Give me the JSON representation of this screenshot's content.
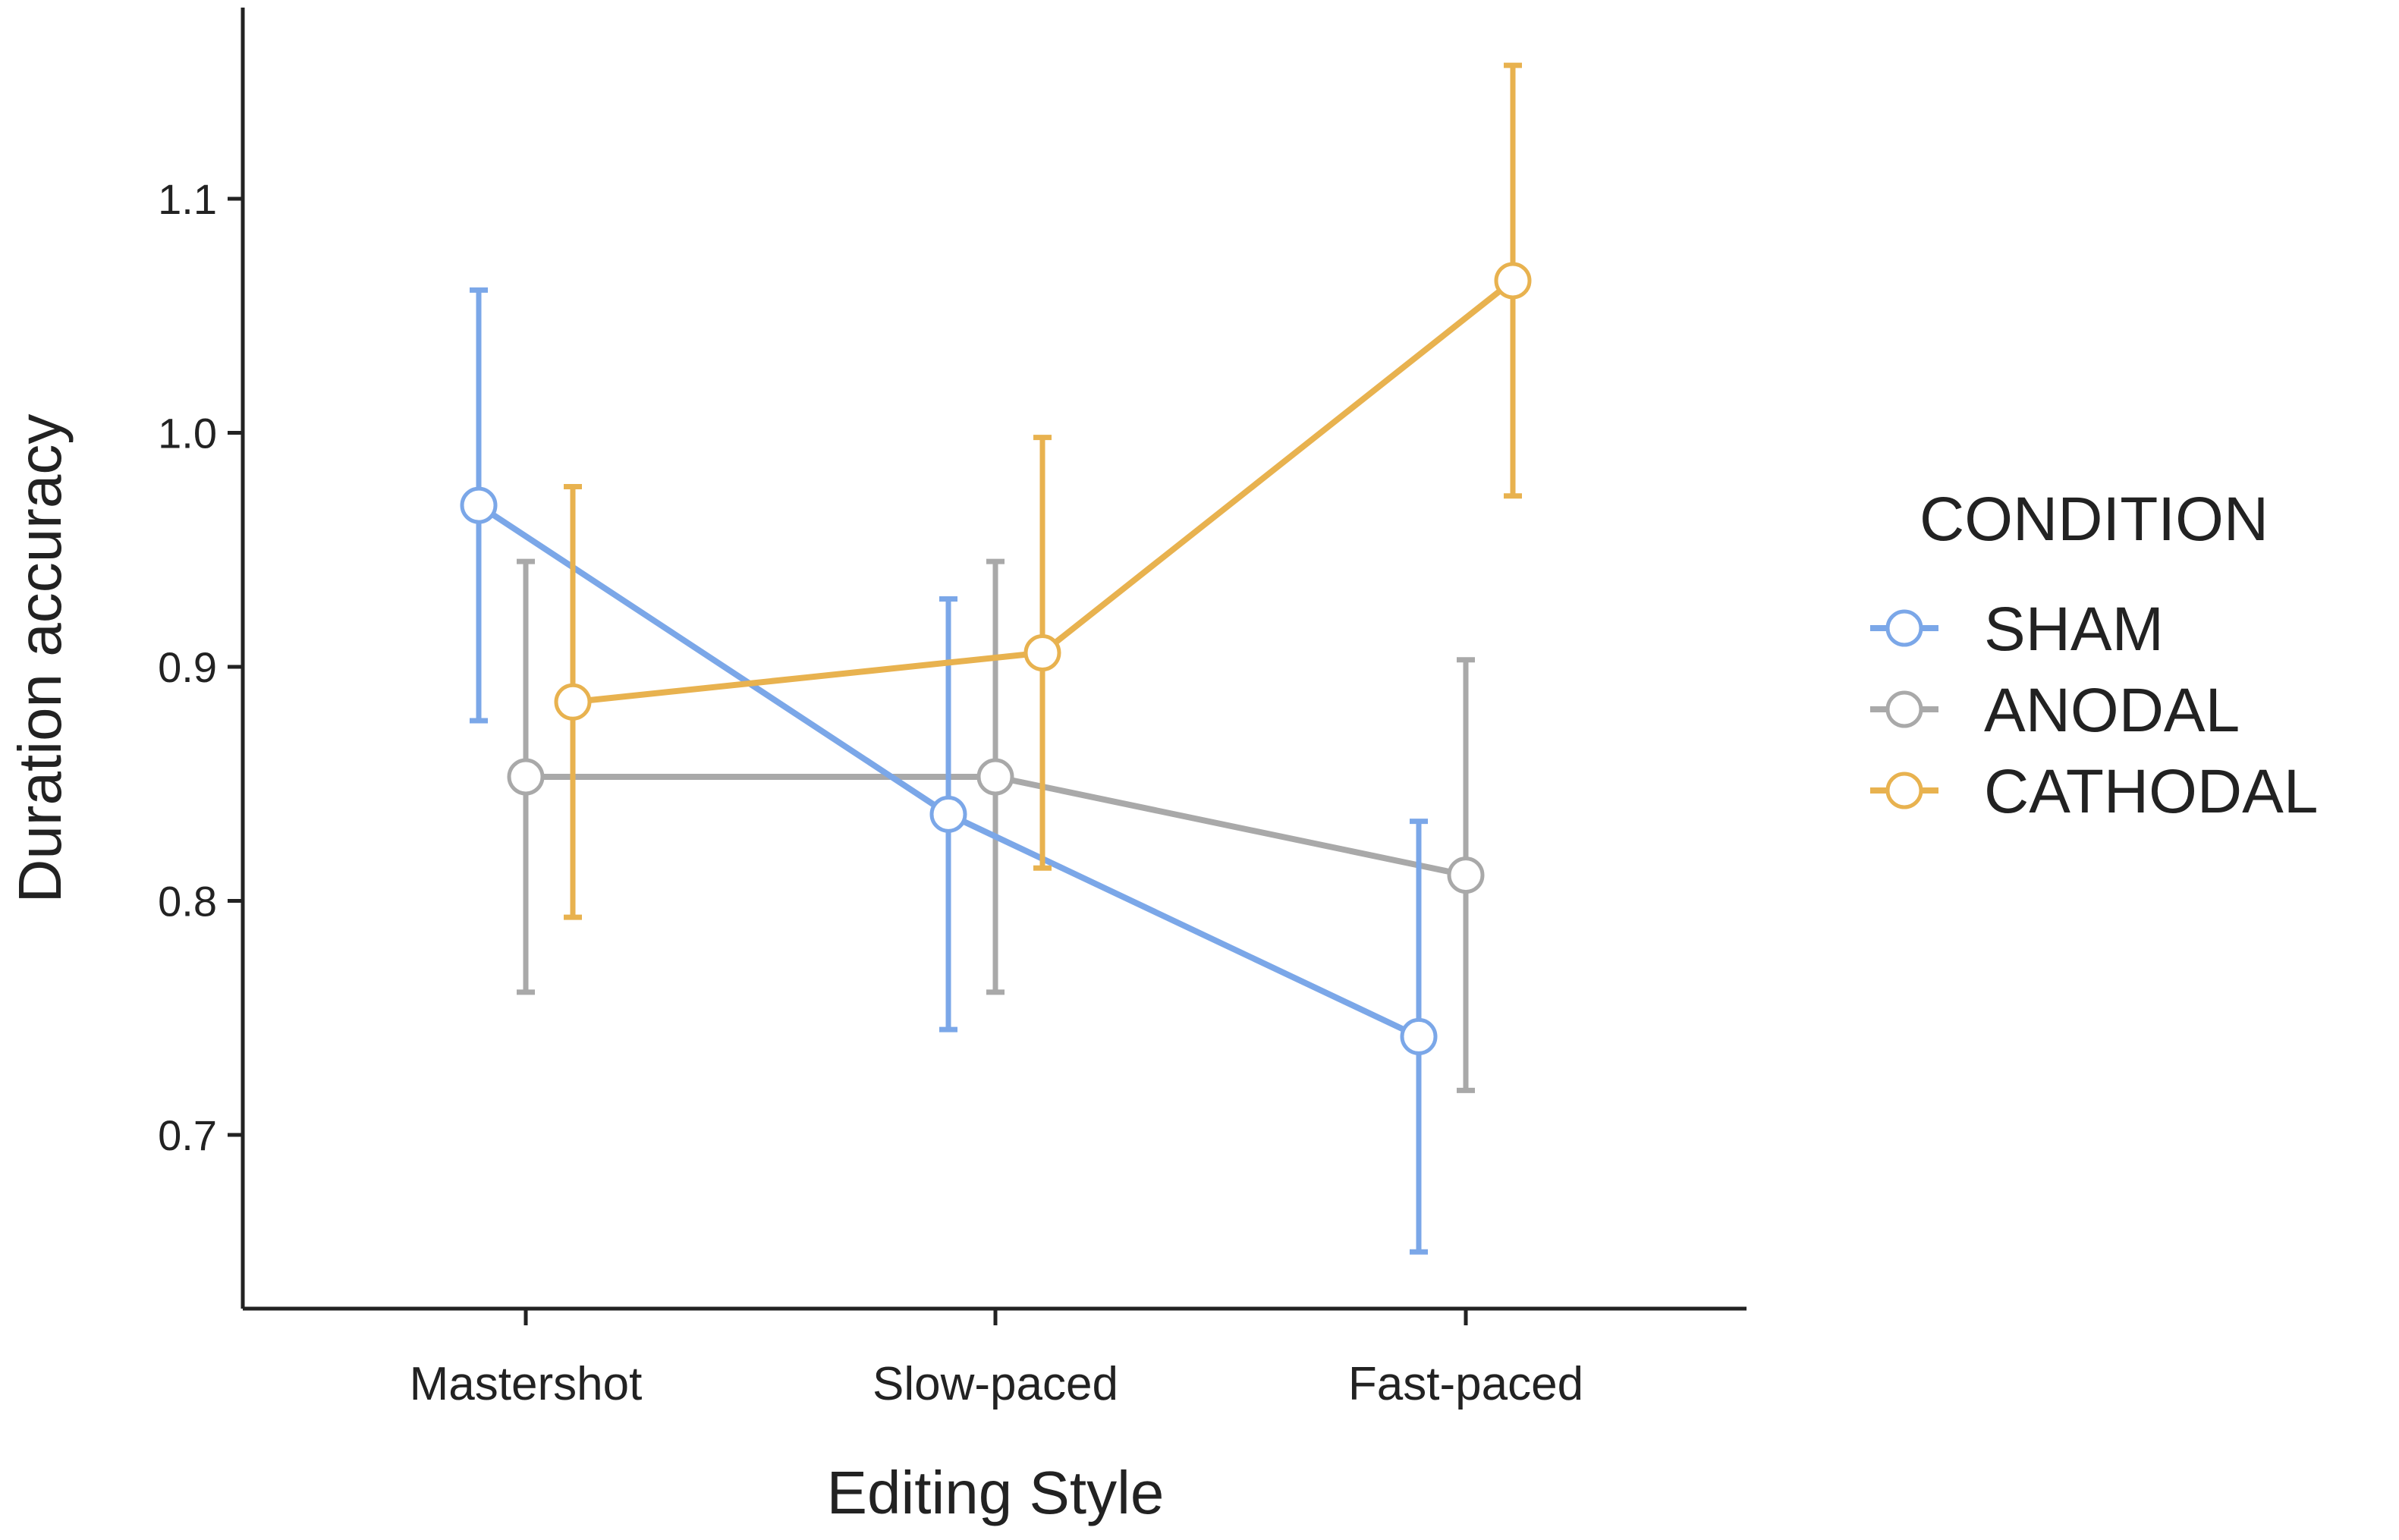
{
  "chart_data": {
    "type": "line",
    "title": "",
    "xlabel": "Editing Style",
    "ylabel": "Duration accuracy",
    "categories": [
      "Mastershot",
      "Slow-paced",
      "Fast-paced"
    ],
    "ylim": [
      0.64,
      1.18
    ],
    "yticks": [
      0.7,
      0.8,
      0.9,
      1.0,
      1.1
    ],
    "ytick_labels": [
      "0.7",
      "0.8",
      "0.9",
      "1.0",
      "1.1"
    ],
    "grid": false,
    "legend": {
      "title": "CONDITION",
      "position": "right"
    },
    "series": [
      {
        "name": "SHAM",
        "color": "#7ba7e8",
        "values": [
          0.969,
          0.837,
          0.742
        ],
        "error_low": [
          0.877,
          0.745,
          0.65
        ],
        "error_high": [
          1.061,
          0.929,
          0.834
        ]
      },
      {
        "name": "ANODAL",
        "color": "#a9a9a9",
        "values": [
          0.853,
          0.853,
          0.811
        ],
        "error_low": [
          0.761,
          0.761,
          0.719
        ],
        "error_high": [
          0.945,
          0.945,
          0.903
        ]
      },
      {
        "name": "CATHODAL",
        "color": "#e8b24f",
        "values": [
          0.885,
          0.906,
          1.065
        ],
        "error_low": [
          0.793,
          0.814,
          0.973
        ],
        "error_high": [
          0.977,
          0.998,
          1.157
        ]
      }
    ]
  }
}
